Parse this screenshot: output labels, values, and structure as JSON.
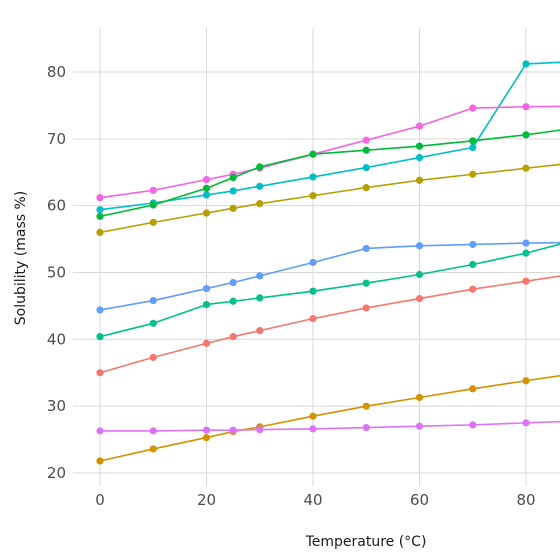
{
  "chart_data": {
    "type": "line",
    "title": "",
    "xlabel": "Temperature (°C)",
    "ylabel": "Solubility (mass %)",
    "xlim": [
      -5,
      87
    ],
    "ylim": [
      18.5,
      85
    ],
    "x_ticks": [
      0,
      20,
      40,
      60,
      80
    ],
    "y_ticks": [
      20,
      30,
      40,
      50,
      60,
      70,
      80
    ],
    "grid": true,
    "legend": "none",
    "series": [
      {
        "color": "#00BFC4",
        "x": [
          0,
          10,
          20,
          25,
          30,
          40,
          50,
          60,
          70,
          80,
          90
        ],
        "y": [
          59.4,
          60.4,
          61.6,
          62.2,
          62.9,
          64.3,
          65.7,
          67.2,
          68.7,
          81.2,
          81.6
        ]
      },
      {
        "color": "#F564E3",
        "x": [
          0,
          10,
          20,
          25,
          30,
          40,
          50,
          60,
          70,
          80,
          90
        ],
        "y": [
          61.2,
          62.3,
          63.9,
          64.7,
          65.6,
          67.7,
          69.8,
          71.9,
          74.6,
          74.8,
          74.9
        ]
      },
      {
        "color": "#00BA38",
        "x": [
          0,
          10,
          20,
          25,
          30,
          40,
          50,
          60,
          70,
          80,
          90
        ],
        "y": [
          58.4,
          60.1,
          62.6,
          64.2,
          65.8,
          67.7,
          68.3,
          68.9,
          69.7,
          70.6,
          71.7
        ]
      },
      {
        "color": "#B79F00",
        "x": [
          0,
          10,
          20,
          25,
          30,
          40,
          50,
          60,
          70,
          80,
          90
        ],
        "y": [
          56.0,
          57.5,
          58.9,
          59.6,
          60.3,
          61.5,
          62.7,
          63.8,
          64.7,
          65.6,
          66.5
        ]
      },
      {
        "color": "#619CFF",
        "x": [
          0,
          10,
          20,
          25,
          30,
          40,
          50,
          60,
          70,
          80,
          90
        ],
        "y": [
          44.4,
          45.8,
          47.6,
          48.5,
          49.5,
          51.5,
          53.6,
          54.0,
          54.2,
          54.4,
          54.5
        ]
      },
      {
        "color": "#00C08B",
        "x": [
          0,
          10,
          20,
          25,
          30,
          40,
          50,
          60,
          70,
          80,
          90
        ],
        "y": [
          40.4,
          42.4,
          45.2,
          45.7,
          46.2,
          47.2,
          48.4,
          49.7,
          51.2,
          52.9,
          55.0
        ]
      },
      {
        "color": "#F8766D",
        "x": [
          0,
          10,
          20,
          25,
          30,
          40,
          50,
          60,
          70,
          80,
          90
        ],
        "y": [
          35.0,
          37.3,
          39.4,
          40.4,
          41.3,
          43.1,
          44.7,
          46.1,
          47.5,
          48.7,
          49.9
        ]
      },
      {
        "color": "#D39200",
        "x": [
          0,
          10,
          20,
          25,
          30,
          40,
          50,
          60,
          70,
          80,
          90
        ],
        "y": [
          21.8,
          23.6,
          25.3,
          26.2,
          26.9,
          28.5,
          30.0,
          31.3,
          32.6,
          33.8,
          35.0
        ]
      },
      {
        "color": "#DB72FB",
        "x": [
          0,
          10,
          20,
          25,
          30,
          40,
          50,
          60,
          70,
          80,
          90
        ],
        "y": [
          26.3,
          26.3,
          26.4,
          26.4,
          26.5,
          26.6,
          26.8,
          27.0,
          27.2,
          27.5,
          27.8
        ]
      }
    ]
  }
}
